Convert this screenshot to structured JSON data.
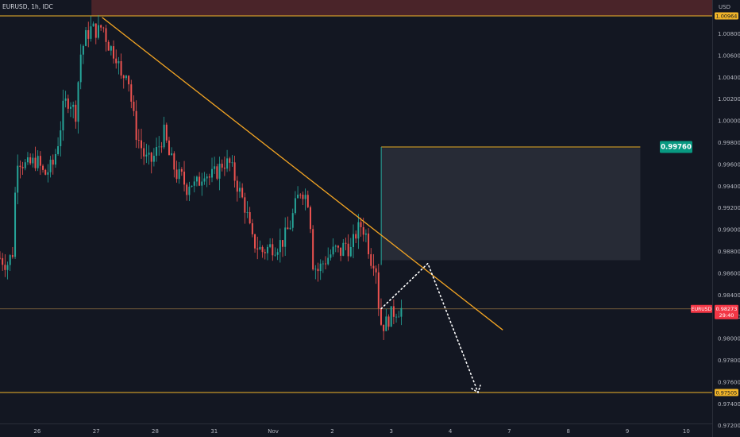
{
  "chart_data": {
    "type": "candlestick",
    "symbol": "EURUSD, 1h, IDC",
    "currency": "USD",
    "ylim": [
      0.9722,
      1.0111
    ],
    "xlim": [
      0,
      11.1
    ],
    "y_ticks": [
      1.008,
      1.006,
      1.004,
      1.002,
      1.0,
      0.998,
      0.996,
      0.994,
      0.992,
      0.99,
      0.988,
      0.986,
      0.984,
      0.982,
      0.98,
      0.978,
      0.976,
      0.974,
      0.972
    ],
    "x_ticks": [
      {
        "label": "26",
        "x": 0.63
      },
      {
        "label": "27",
        "x": 1.63
      },
      {
        "label": "28",
        "x": 2.63
      },
      {
        "label": "31",
        "x": 3.63
      },
      {
        "label": "Nov",
        "x": 4.63
      },
      {
        "label": "2",
        "x": 5.63
      },
      {
        "label": "3",
        "x": 6.63
      },
      {
        "label": "4",
        "x": 7.63
      },
      {
        "label": "7",
        "x": 8.63
      },
      {
        "label": "8",
        "x": 9.63
      },
      {
        "label": "9",
        "x": 10.63
      },
      {
        "label": "10",
        "x": 11.63
      }
    ],
    "close_series": [
      [
        0.0,
        0.9874
      ],
      [
        0.12,
        0.9868
      ],
      [
        0.22,
        0.988
      ],
      [
        0.28,
        0.9967
      ],
      [
        0.45,
        0.9958
      ],
      [
        0.62,
        0.9964
      ],
      [
        0.75,
        0.995
      ],
      [
        0.9,
        0.996
      ],
      [
        1.0,
        0.9985
      ],
      [
        1.08,
        1.0015
      ],
      [
        1.18,
        1.002
      ],
      [
        1.28,
        1.0005
      ],
      [
        1.36,
        1.006
      ],
      [
        1.46,
        1.0078
      ],
      [
        1.55,
        1.0085
      ],
      [
        1.66,
        1.0082
      ],
      [
        1.74,
        1.0088
      ],
      [
        1.82,
        1.0072
      ],
      [
        1.9,
        1.0065
      ],
      [
        1.98,
        1.006
      ],
      [
        2.06,
        1.0036
      ],
      [
        2.15,
        1.005
      ],
      [
        2.22,
        1.002
      ],
      [
        2.3,
        0.999
      ],
      [
        2.38,
        0.9978
      ],
      [
        2.46,
        0.9965
      ],
      [
        2.55,
        0.9962
      ],
      [
        2.62,
        0.9968
      ],
      [
        2.7,
        0.9978
      ],
      [
        2.79,
        0.999
      ],
      [
        2.85,
        0.997
      ],
      [
        2.93,
        0.996
      ],
      [
        3.0,
        0.995
      ],
      [
        3.08,
        0.9948
      ],
      [
        3.16,
        0.9938
      ],
      [
        3.22,
        0.9945
      ],
      [
        3.3,
        0.994
      ],
      [
        3.38,
        0.9945
      ],
      [
        3.46,
        0.9955
      ],
      [
        3.55,
        0.9948
      ],
      [
        3.66,
        0.9952
      ],
      [
        3.78,
        0.9962
      ],
      [
        3.9,
        0.996
      ],
      [
        4.0,
        0.9944
      ],
      [
        4.08,
        0.9932
      ],
      [
        4.17,
        0.9918
      ],
      [
        4.27,
        0.989
      ],
      [
        4.35,
        0.9885
      ],
      [
        4.45,
        0.988
      ],
      [
        4.56,
        0.9884
      ],
      [
        4.68,
        0.9885
      ],
      [
        4.8,
        0.989
      ],
      [
        4.92,
        0.9905
      ],
      [
        5.02,
        0.9925
      ],
      [
        5.1,
        0.9938
      ],
      [
        5.17,
        0.9932
      ],
      [
        5.24,
        0.9925
      ],
      [
        5.3,
        0.987
      ],
      [
        5.38,
        0.9862
      ],
      [
        5.48,
        0.987
      ],
      [
        5.58,
        0.9876
      ],
      [
        5.68,
        0.9882
      ],
      [
        5.76,
        0.9878
      ],
      [
        5.85,
        0.9888
      ],
      [
        5.94,
        0.988
      ],
      [
        6.04,
        0.9898
      ],
      [
        6.12,
        0.9904
      ],
      [
        6.19,
        0.9898
      ],
      [
        6.24,
        0.9885
      ],
      [
        6.3,
        0.987
      ],
      [
        6.36,
        0.9875
      ],
      [
        6.4,
        0.9842
      ],
      [
        6.44,
        0.9815
      ],
      [
        6.52,
        0.9812
      ],
      [
        6.6,
        0.982
      ],
      [
        6.7,
        0.9826
      ],
      [
        6.8,
        0.9827
      ]
    ],
    "last_price": "0.98273",
    "countdown": "29:40",
    "symbol_badge": "EURUSD",
    "level_labels": {
      "top": "1.00964",
      "target": "0.99760",
      "bottom": "0.97505"
    },
    "levels": {
      "top": 1.00964,
      "target": 0.9976,
      "bottom": 0.97505
    },
    "trendline": [
      [
        1.73,
        1.0095
      ],
      [
        8.52,
        0.98079
      ]
    ],
    "zone": {
      "x0": 6.46,
      "x1": 10.85,
      "y0": 0.9872,
      "y1": 0.9975
    },
    "projection": [
      [
        6.46,
        0.98275
      ],
      [
        7.25,
        0.9869
      ],
      [
        8.1,
        0.97505
      ]
    ],
    "colors": {
      "background": "#131722",
      "up": "#26a69a",
      "down": "#ef5350",
      "level": "#f0b429",
      "trend": "#f5a623",
      "projection": "#ffffff",
      "zone": "#2a2e39",
      "top_band": "#4a2429",
      "target_badge": "#089981",
      "last_badge": "#f23645",
      "axis_text": "#b2b5be"
    }
  }
}
